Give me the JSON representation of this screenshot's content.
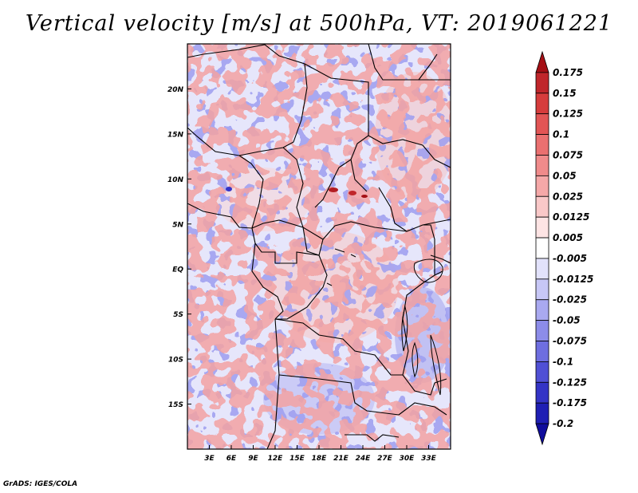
{
  "title": "Vertical velocity [m/s] at 500hPa, VT: 2019061221",
  "credit": "GrADS: IGES/COLA",
  "map": {
    "region": "Central Africa",
    "lon_range": [
      0,
      36
    ],
    "lat_range": [
      -20,
      25
    ],
    "lat_ticks": [
      {
        "value": 20,
        "label": "20N"
      },
      {
        "value": 15,
        "label": "15N"
      },
      {
        "value": 10,
        "label": "10N"
      },
      {
        "value": 5,
        "label": "5N"
      },
      {
        "value": 0,
        "label": "EQ"
      },
      {
        "value": -5,
        "label": "5S"
      },
      {
        "value": -10,
        "label": "10S"
      },
      {
        "value": -15,
        "label": "15S"
      }
    ],
    "lon_ticks": [
      {
        "value": 3,
        "label": "3E"
      },
      {
        "value": 6,
        "label": "6E"
      },
      {
        "value": 9,
        "label": "9E"
      },
      {
        "value": 12,
        "label": "12E"
      },
      {
        "value": 15,
        "label": "15E"
      },
      {
        "value": 18,
        "label": "18E"
      },
      {
        "value": 21,
        "label": "21E"
      },
      {
        "value": 24,
        "label": "24E"
      },
      {
        "value": 27,
        "label": "27E"
      },
      {
        "value": 30,
        "label": "30E"
      },
      {
        "value": 33,
        "label": "33E"
      }
    ]
  },
  "colorbar": {
    "labels": [
      "0.175",
      "0.15",
      "0.125",
      "0.1",
      "0.075",
      "0.05",
      "0.025",
      "0.0125",
      "0.005",
      "-0.005",
      "-0.0125",
      "-0.025",
      "-0.05",
      "-0.075",
      "-0.1",
      "-0.125",
      "-0.175",
      "-0.2"
    ],
    "colors": [
      "#a50f15",
      "#c0262b",
      "#d63c3c",
      "#e25555",
      "#ea7070",
      "#f08b8b",
      "#f5a8a8",
      "#f9c8c8",
      "#fde4e4",
      "#ffffff",
      "#e2e2fb",
      "#c7c7f6",
      "#a9a9f0",
      "#8c8ce9",
      "#6e6ee0",
      "#5050d5",
      "#3434c6",
      "#1f1fb4",
      "#100d9c"
    ]
  }
}
